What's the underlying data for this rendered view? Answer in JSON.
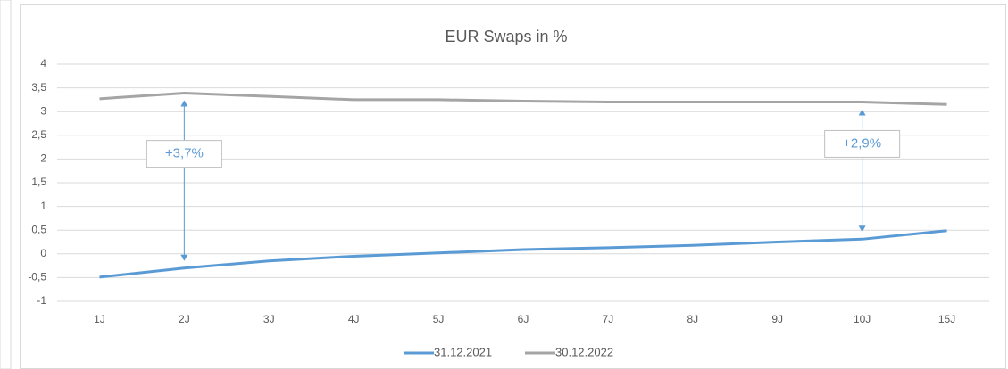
{
  "chart_data": {
    "type": "line",
    "title": "EUR Swaps in %",
    "categories": [
      "1J",
      "2J",
      "3J",
      "4J",
      "5J",
      "6J",
      "7J",
      "8J",
      "9J",
      "10J",
      "15J"
    ],
    "series": [
      {
        "name": "31.12.2021",
        "color": "#5b9bd5",
        "values": [
          -0.49,
          -0.3,
          -0.15,
          -0.05,
          0.02,
          0.09,
          0.13,
          0.18,
          0.25,
          0.31,
          0.49
        ]
      },
      {
        "name": "30.12.2022",
        "color": "#a5a5a5",
        "values": [
          3.27,
          3.39,
          3.32,
          3.25,
          3.25,
          3.22,
          3.2,
          3.2,
          3.2,
          3.2,
          3.15
        ]
      }
    ],
    "ylim": [
      -1,
      4
    ],
    "yticks": [
      -1,
      {
        "value": -0.5,
        "label": "-0,5"
      },
      0,
      {
        "value": 0.5,
        "label": "0,5"
      },
      1,
      {
        "value": 1.5,
        "label": "1,5"
      },
      2,
      {
        "value": 2.5,
        "label": "2,5"
      },
      3,
      {
        "value": 3.5,
        "label": "3,5"
      },
      4
    ],
    "grid": true,
    "legend": "bottom",
    "annotations": [
      {
        "text": "+3,7%",
        "x": "2J"
      },
      {
        "text": "+2,9%",
        "x": "10J"
      }
    ]
  }
}
